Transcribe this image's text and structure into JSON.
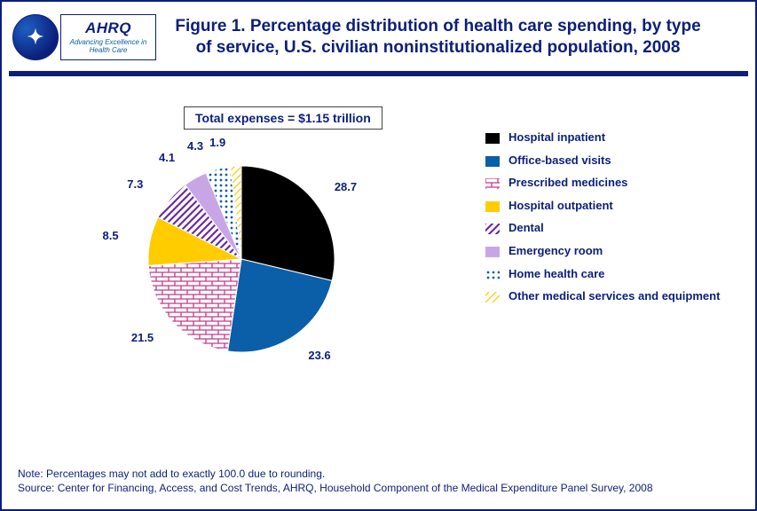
{
  "title": "Figure 1. Percentage distribution of health care spending, by type of service, U.S. civilian noninstitutionalized population, 2008",
  "total_box": "Total expenses = $1.15 trillion",
  "logo": {
    "ahrq": "AHRQ",
    "ahrq_sub": "Advancing\nExcellence in\nHealth Care"
  },
  "chart": {
    "type": "pie",
    "background_color": "#ffffff",
    "text_color": "#0b1f7a",
    "label_fontsize": 13,
    "slices": [
      {
        "label": "Hospital inpatient",
        "value": 28.7,
        "fill": "solid",
        "color": "#000000"
      },
      {
        "label": "Office-based visits",
        "value": 23.6,
        "fill": "solid",
        "color": "#0b5ea8"
      },
      {
        "label": "Prescribed medicines",
        "value": 21.5,
        "fill": "brick",
        "color": "#c23a8a"
      },
      {
        "label": "Hospital outpatient",
        "value": 8.5,
        "fill": "solid",
        "color": "#ffcc00"
      },
      {
        "label": "Dental",
        "value": 7.3,
        "fill": "diag",
        "color": "#6b2aa0"
      },
      {
        "label": "Emergency room",
        "value": 4.1,
        "fill": "solid",
        "color": "#c8a6e6"
      },
      {
        "label": "Home health care",
        "value": 4.3,
        "fill": "dots",
        "color": "#0b5ea8"
      },
      {
        "label": "Other medical services and equipment",
        "value": 1.9,
        "fill": "ldiag",
        "color": "#ffcc00"
      }
    ]
  },
  "footer": {
    "note": "Note: Percentages may not add to exactly 100.0 due to rounding.",
    "source": "Source: Center for Financing, Access, and Cost Trends, AHRQ, Household Component of the Medical Expenditure Panel Survey, 2008"
  }
}
